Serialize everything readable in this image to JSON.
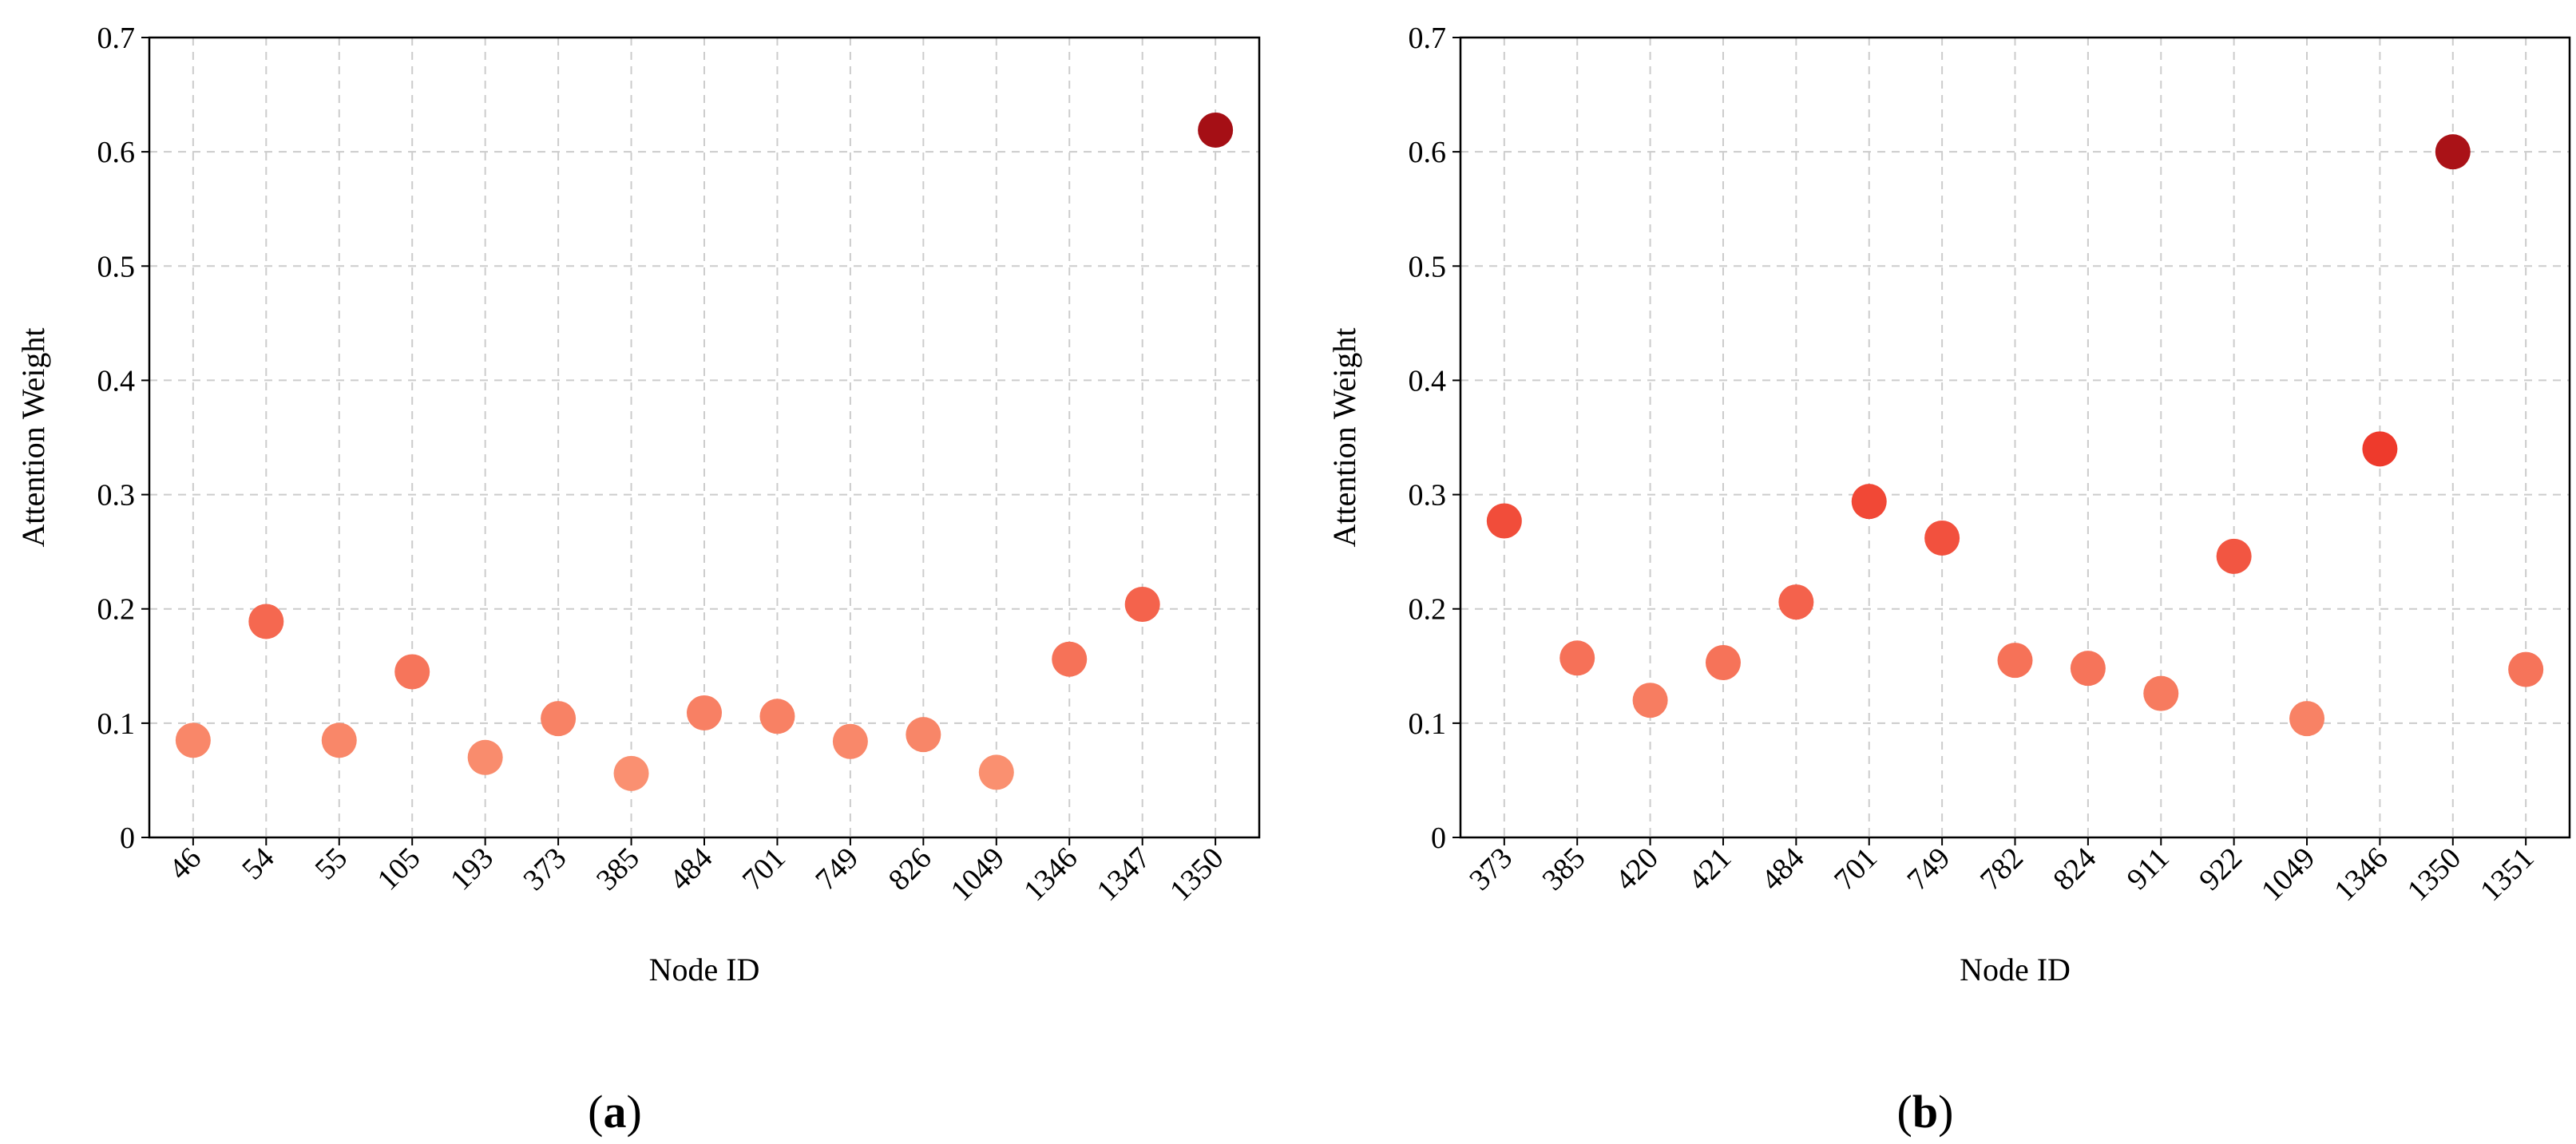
{
  "figure": {
    "panels": [
      {
        "label_open": "(",
        "label_letter": "a",
        "label_close": ")"
      },
      {
        "label_open": "(",
        "label_letter": "b",
        "label_close": ")"
      }
    ]
  },
  "chart_data": [
    {
      "type": "scatter",
      "xlabel": "Node ID",
      "ylabel": "Attention Weight",
      "ylim": [
        0,
        0.7
      ],
      "yticks": [
        "0",
        "0.1",
        "0.2",
        "0.3",
        "0.4",
        "0.5",
        "0.6",
        "0.7"
      ],
      "grid": true,
      "categories": [
        "46",
        "54",
        "55",
        "105",
        "193",
        "373",
        "385",
        "484",
        "701",
        "749",
        "826",
        "1049",
        "1346",
        "1347",
        "1350"
      ],
      "values": [
        0.085,
        0.189,
        0.085,
        0.145,
        0.07,
        0.104,
        0.056,
        0.109,
        0.106,
        0.084,
        0.09,
        0.057,
        0.156,
        0.204,
        0.619
      ],
      "color_scale": "Reds (darker = higher weight)"
    },
    {
      "type": "scatter",
      "xlabel": "Node ID",
      "ylabel": "Attention Weight",
      "ylim": [
        0,
        0.7
      ],
      "yticks": [
        "0",
        "0.1",
        "0.2",
        "0.3",
        "0.4",
        "0.5",
        "0.6",
        "0.7"
      ],
      "grid": true,
      "categories": [
        "373",
        "385",
        "420",
        "421",
        "484",
        "701",
        "749",
        "782",
        "824",
        "911",
        "922",
        "1049",
        "1346",
        "1350",
        "1351"
      ],
      "values": [
        0.277,
        0.157,
        0.12,
        0.153,
        0.206,
        0.294,
        0.262,
        0.155,
        0.148,
        0.126,
        0.246,
        0.104,
        0.34,
        0.6,
        0.147
      ],
      "color_scale": "Reds (darker = higher weight)"
    }
  ]
}
